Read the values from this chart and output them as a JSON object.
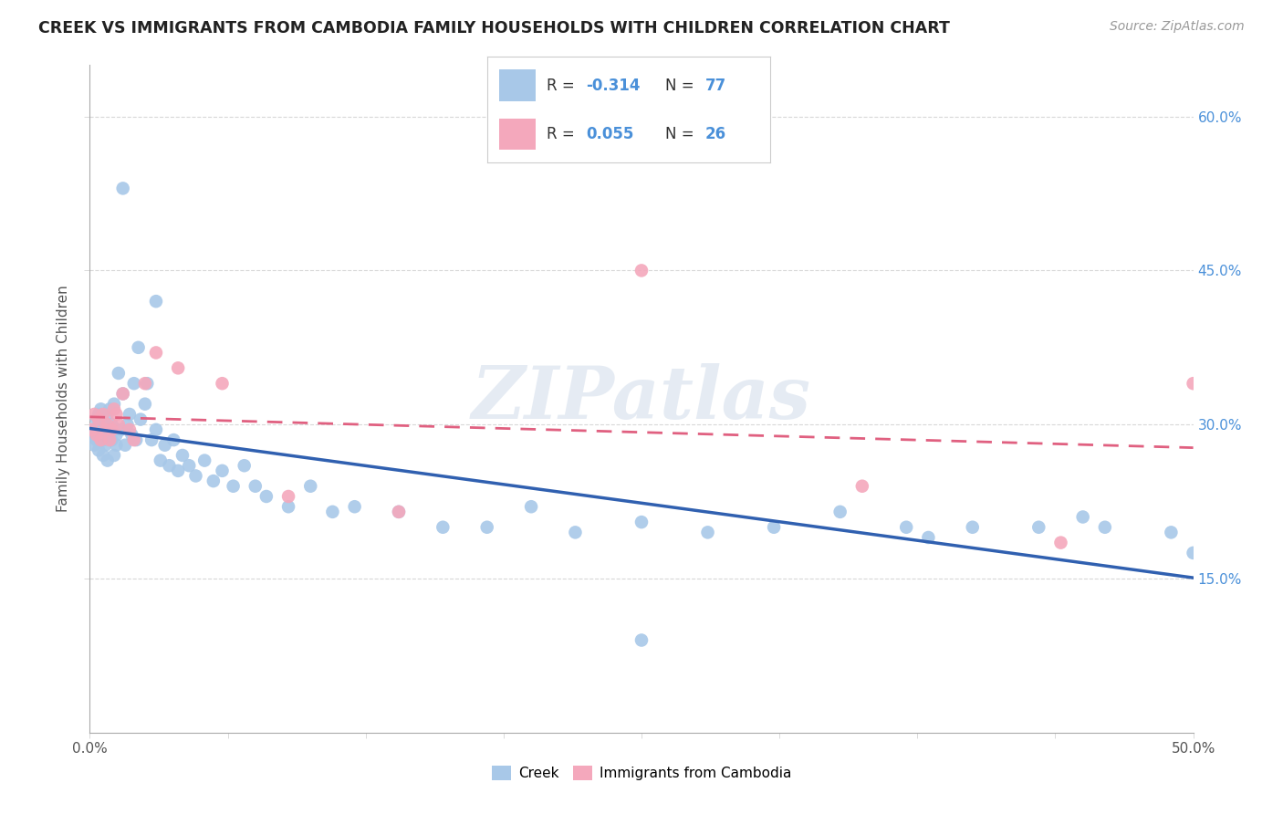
{
  "title": "CREEK VS IMMIGRANTS FROM CAMBODIA FAMILY HOUSEHOLDS WITH CHILDREN CORRELATION CHART",
  "source": "Source: ZipAtlas.com",
  "ylabel": "Family Households with Children",
  "xlim": [
    0.0,
    0.5
  ],
  "ylim": [
    0.0,
    0.65
  ],
  "xticks": [
    0.0,
    0.0625,
    0.125,
    0.1875,
    0.25,
    0.3125,
    0.375,
    0.4375,
    0.5
  ],
  "xticklabels_show": [
    "0.0%",
    "",
    "",
    "",
    "",
    "",
    "",
    "",
    "50.0%"
  ],
  "yticks": [
    0.15,
    0.3,
    0.45,
    0.6
  ],
  "yticklabels": [
    "15.0%",
    "30.0%",
    "45.0%",
    "60.0%"
  ],
  "creek_color": "#a8c8e8",
  "cambodia_color": "#f4a8bc",
  "creek_line_color": "#3060b0",
  "cambodia_line_color": "#e06080",
  "watermark_text": "ZIPatlas",
  "background_color": "#ffffff",
  "grid_color": "#d8d8d8",
  "creek_x": [
    0.001,
    0.002,
    0.002,
    0.003,
    0.003,
    0.004,
    0.004,
    0.005,
    0.005,
    0.006,
    0.006,
    0.007,
    0.007,
    0.008,
    0.008,
    0.009,
    0.009,
    0.01,
    0.01,
    0.011,
    0.011,
    0.012,
    0.012,
    0.013,
    0.014,
    0.015,
    0.016,
    0.017,
    0.018,
    0.019,
    0.02,
    0.021,
    0.022,
    0.023,
    0.025,
    0.026,
    0.028,
    0.03,
    0.032,
    0.034,
    0.036,
    0.038,
    0.04,
    0.042,
    0.045,
    0.048,
    0.052,
    0.056,
    0.06,
    0.065,
    0.07,
    0.075,
    0.08,
    0.09,
    0.1,
    0.11,
    0.12,
    0.14,
    0.16,
    0.18,
    0.2,
    0.22,
    0.25,
    0.28,
    0.31,
    0.34,
    0.37,
    0.4,
    0.43,
    0.46,
    0.49,
    0.015,
    0.03,
    0.25,
    0.38,
    0.45,
    0.5
  ],
  "creek_y": [
    0.29,
    0.295,
    0.28,
    0.305,
    0.285,
    0.31,
    0.275,
    0.295,
    0.315,
    0.285,
    0.27,
    0.3,
    0.28,
    0.31,
    0.265,
    0.295,
    0.315,
    0.285,
    0.3,
    0.27,
    0.32,
    0.29,
    0.28,
    0.35,
    0.295,
    0.33,
    0.28,
    0.3,
    0.31,
    0.29,
    0.34,
    0.285,
    0.375,
    0.305,
    0.32,
    0.34,
    0.285,
    0.295,
    0.265,
    0.28,
    0.26,
    0.285,
    0.255,
    0.27,
    0.26,
    0.25,
    0.265,
    0.245,
    0.255,
    0.24,
    0.26,
    0.24,
    0.23,
    0.22,
    0.24,
    0.215,
    0.22,
    0.215,
    0.2,
    0.2,
    0.22,
    0.195,
    0.205,
    0.195,
    0.2,
    0.215,
    0.2,
    0.2,
    0.2,
    0.2,
    0.195,
    0.53,
    0.42,
    0.09,
    0.19,
    0.21,
    0.175
  ],
  "cambodia_x": [
    0.001,
    0.002,
    0.003,
    0.004,
    0.005,
    0.006,
    0.007,
    0.008,
    0.009,
    0.01,
    0.011,
    0.012,
    0.013,
    0.015,
    0.018,
    0.02,
    0.025,
    0.03,
    0.04,
    0.06,
    0.09,
    0.14,
    0.25,
    0.35,
    0.44,
    0.5
  ],
  "cambodia_y": [
    0.295,
    0.31,
    0.29,
    0.305,
    0.285,
    0.31,
    0.295,
    0.3,
    0.285,
    0.295,
    0.315,
    0.31,
    0.3,
    0.33,
    0.295,
    0.285,
    0.34,
    0.37,
    0.355,
    0.34,
    0.23,
    0.215,
    0.45,
    0.24,
    0.185,
    0.34
  ]
}
